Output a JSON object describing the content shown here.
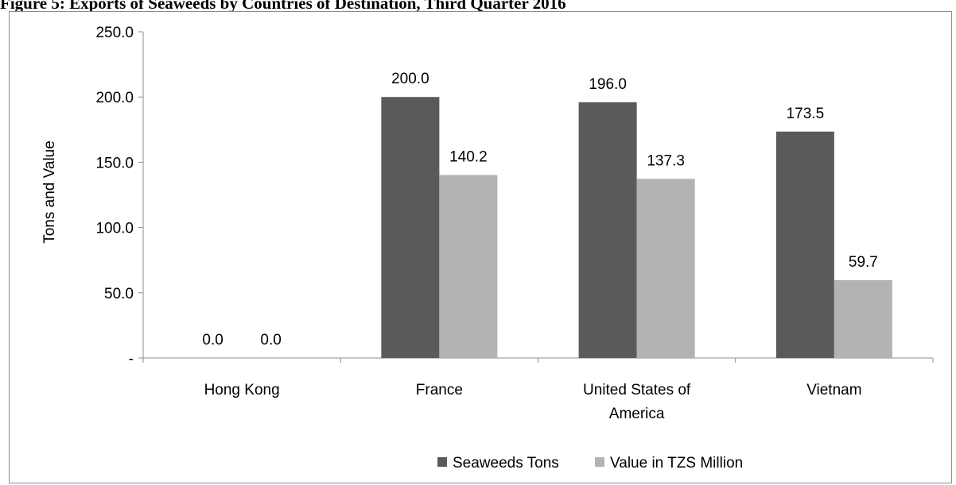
{
  "figure_title": "Figure 5: Exports of Seaweeds by Countries of Destination, Third Quarter 2016",
  "chart_data": {
    "type": "bar",
    "title": "",
    "xlabel": "",
    "ylabel": "Tons and Value",
    "ylim": [
      0,
      250
    ],
    "yticks": [
      0,
      50,
      100,
      150,
      200,
      250
    ],
    "ytick_labels": [
      "-",
      "50.0",
      "100.0",
      "150.0",
      "200.0",
      "250.0"
    ],
    "categories": [
      "Hong Kong",
      "France",
      "United States of America",
      "Vietnam"
    ],
    "category_lines": [
      [
        "Hong Kong"
      ],
      [
        "France"
      ],
      [
        "United States of",
        "America"
      ],
      [
        "Vietnam"
      ]
    ],
    "series": [
      {
        "name": "Seaweeds Tons",
        "color": "#5a5a5a",
        "values": [
          0.0,
          200.0,
          196.0,
          173.5
        ],
        "labels": [
          "0.0",
          "200.0",
          "196.0",
          "173.5"
        ]
      },
      {
        "name": "Value in TZS Million",
        "color": "#b3b3b3",
        "values": [
          0.0,
          140.2,
          137.3,
          59.7
        ],
        "labels": [
          "0.0",
          "140.2",
          "137.3",
          "59.7"
        ]
      }
    ],
    "grid": false,
    "legend": "bottom"
  }
}
